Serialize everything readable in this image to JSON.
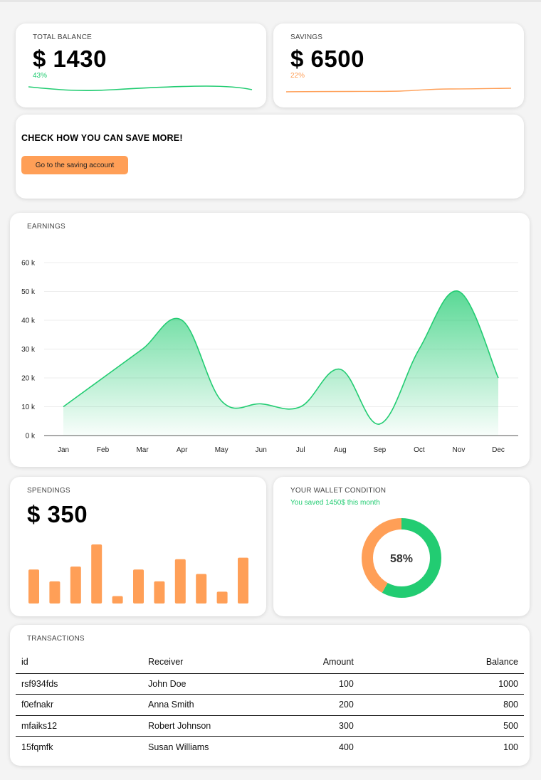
{
  "colors": {
    "green": "#22cc72",
    "orange": "#ff9f57"
  },
  "total_balance": {
    "label": "TOTAL BALANCE",
    "value": "$ 1430",
    "percent": "43%"
  },
  "savings": {
    "label": "SAVINGS",
    "value": "$ 6500",
    "percent": "22%"
  },
  "promo": {
    "title": "CHECK HOW YOU CAN SAVE MORE!",
    "button_label": "Go to the saving account"
  },
  "earnings": {
    "label": "EARNINGS"
  },
  "spendings": {
    "label": "SPENDINGS",
    "value": "$ 350"
  },
  "wallet": {
    "label": "YOUR WALLET CONDITION",
    "subtitle": "You saved 1450$ this month",
    "percent_label": "58%"
  },
  "transactions": {
    "label": "TRANSACTIONS",
    "columns": [
      "id",
      "Receiver",
      "Amount",
      "Balance"
    ],
    "rows": [
      [
        "rsf934fds",
        "John Doe",
        "100",
        "1000"
      ],
      [
        "f0efnakr",
        "Anna Smith",
        "200",
        "800"
      ],
      [
        "mfaiks12",
        "Robert Johnson",
        "300",
        "500"
      ],
      [
        "15fqmfk",
        "Susan Williams",
        "400",
        "100"
      ]
    ]
  },
  "chart_data": [
    {
      "type": "area",
      "categories": [
        "Jan",
        "Feb",
        "Mar",
        "Apr",
        "May",
        "Jun",
        "Jul",
        "Aug",
        "Sep",
        "Oct",
        "Nov",
        "Dec"
      ],
      "values": [
        10,
        20,
        30,
        40,
        12,
        11,
        10,
        23,
        4,
        30,
        50,
        20
      ],
      "yticks": [
        "0 k",
        "10 k",
        "20 k",
        "30 k",
        "40 k",
        "50 k",
        "60 k"
      ],
      "ylim": [
        0,
        60
      ],
      "grid": true,
      "color": "#22cc72"
    },
    {
      "type": "bar",
      "values": [
        23,
        15,
        25,
        40,
        5,
        23,
        15,
        30,
        20,
        8,
        31
      ],
      "ylim": [
        0,
        40
      ],
      "color": "#ff9f57"
    },
    {
      "type": "pie",
      "values": [
        58,
        42
      ],
      "colors": [
        "#22cc72",
        "#ff9f57"
      ]
    }
  ]
}
